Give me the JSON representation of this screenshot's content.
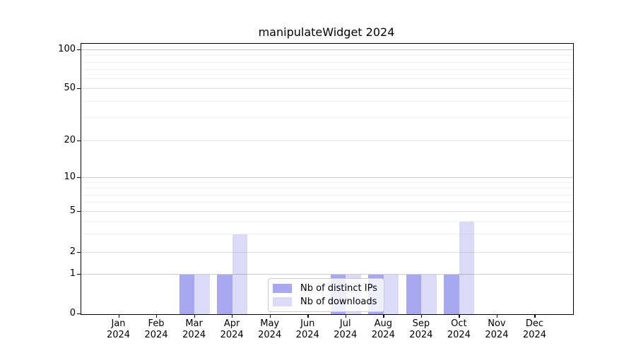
{
  "title": "manipulateWidget 2024",
  "chart_data": {
    "type": "bar",
    "title": "manipulateWidget 2024",
    "year_label": "2024",
    "categories": [
      "Jan",
      "Feb",
      "Mar",
      "Apr",
      "May",
      "Jun",
      "Jul",
      "Aug",
      "Sep",
      "Oct",
      "Nov",
      "Dec"
    ],
    "series": [
      {
        "name": "Nb of distinct IPs",
        "color": "#a8a8f0",
        "values": [
          0,
          0,
          1,
          1,
          0,
          0,
          1,
          1,
          1,
          1,
          0,
          0
        ]
      },
      {
        "name": "Nb of downloads",
        "color": "#dbdbf8",
        "values": [
          0,
          0,
          1,
          3,
          0,
          0,
          1,
          1,
          1,
          4,
          0,
          0
        ]
      }
    ],
    "y_axis": {
      "scale": "pseudo-log",
      "ylim": [
        0,
        100
      ],
      "major_ticks": [
        0,
        1,
        2,
        5,
        10,
        20,
        50,
        100
      ],
      "decade_ticks": [
        1,
        10,
        100
      ],
      "minor_ticks": [
        3,
        4,
        6,
        7,
        8,
        9,
        30,
        40,
        60,
        70,
        80,
        90
      ],
      "grid": "on"
    },
    "x_axis": {
      "tick_label_line1": [
        "Jan",
        "Feb",
        "Mar",
        "Apr",
        "May",
        "Jun",
        "Jul",
        "Aug",
        "Sep",
        "Oct",
        "Nov",
        "Dec"
      ],
      "tick_label_line2": "2024"
    },
    "legend": {
      "items": [
        "Nb of distinct IPs",
        "Nb of downloads"
      ],
      "position": "lower-center-inside"
    }
  }
}
